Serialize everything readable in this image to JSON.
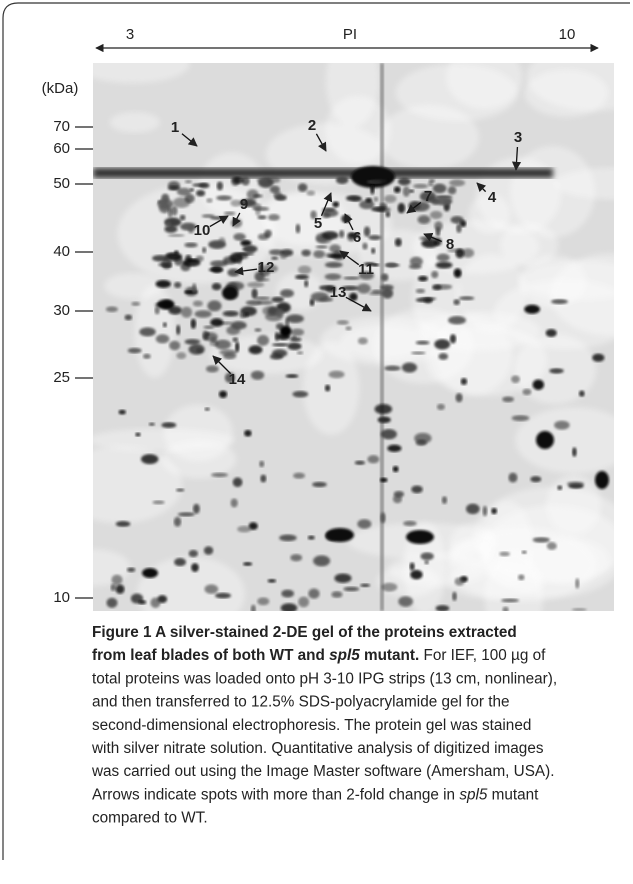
{
  "figure": {
    "pi_axis": {
      "left": "3",
      "label": "PI",
      "right": "10"
    },
    "mass_unit": "(kDa)",
    "mass_markers": [
      "70",
      "60",
      "50",
      "40",
      "30",
      "25",
      "10"
    ],
    "spots": [
      "1",
      "2",
      "3",
      "4",
      "5",
      "6",
      "7",
      "8",
      "9",
      "10",
      "11",
      "12",
      "13",
      "14"
    ],
    "caption": [
      [
        {
          "text": "Figure 1 A silver-stained 2-DE gel of the proteins extracted",
          "style": "bold"
        }
      ],
      [
        {
          "text": "from leaf blades of both WT and ",
          "style": "bold"
        },
        {
          "text": "spl5",
          "style": "bold-italic"
        },
        {
          "text": " mutant.",
          "style": "bold"
        },
        {
          "text": " For IEF, 100 µg of",
          "style": "normal"
        }
      ],
      [
        {
          "text": "total proteins was loaded onto pH 3-10 IPG strips (13 cm, nonlinear),",
          "style": "normal"
        }
      ],
      [
        {
          "text": "and then transferred to 12.5% SDS-polyacrylamide gel for the",
          "style": "normal"
        }
      ],
      [
        {
          "text": "second-dimensional electrophoresis. The protein gel was stained",
          "style": "normal"
        }
      ],
      [
        {
          "text": "with silver nitrate solution. Quantitative analysis of digitized images",
          "style": "normal"
        }
      ],
      [
        {
          "text": "was carried out using the Image Master software (Amersham, USA).",
          "style": "normal"
        }
      ],
      [
        {
          "text": "Arrows indicate spots with more than 2-fold change in ",
          "style": "normal"
        },
        {
          "text": "spl5",
          "style": "italic"
        },
        {
          "text": " mutant",
          "style": "normal"
        }
      ],
      [
        {
          "text": "compared to WT.",
          "style": "normal"
        }
      ]
    ]
  }
}
